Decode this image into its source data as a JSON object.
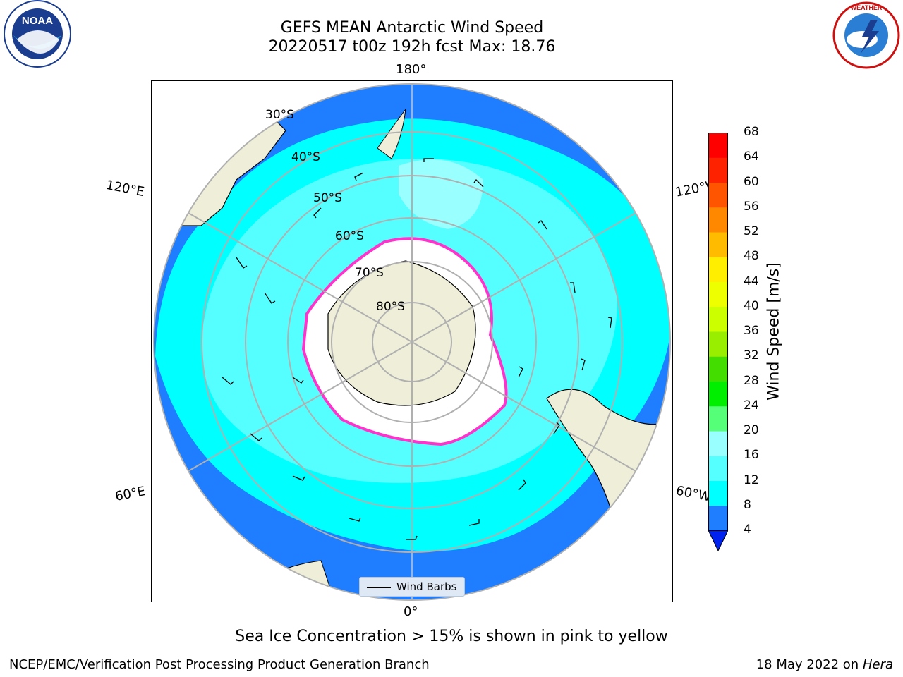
{
  "header": {
    "title": "GEFS MEAN Antarctic Wind Speed",
    "subtitle": "20220517 t00z 192h fcst   Max: 18.76"
  },
  "logos": {
    "left": "NOAA",
    "right": "NATIONAL WEATHER SERVICE"
  },
  "map": {
    "longitude_labels": {
      "top": "180°",
      "bottom": "0°",
      "upper_left": "120°E",
      "upper_right": "120°W",
      "lower_left": "60°E",
      "lower_right": "60°W"
    },
    "latitude_labels": [
      "30°S",
      "40°S",
      "50°S",
      "60°S",
      "70°S",
      "80°S"
    ],
    "legend": {
      "label": "Wind Barbs"
    },
    "colors": {
      "ocean_deep": "#1e7eff",
      "ocean_8_12": "#00ffff",
      "ocean_12_16": "#55ffff",
      "ocean_16_20": "#99ffff",
      "land": "#efeed9",
      "sea_ice_edge": "#ff33cc",
      "ice_interior": "#ffffff"
    }
  },
  "colorbar": {
    "label": "Wind Speed [m/s]",
    "ticks": [
      "4",
      "8",
      "12",
      "16",
      "20",
      "24",
      "28",
      "32",
      "36",
      "40",
      "44",
      "48",
      "52",
      "56",
      "60",
      "64",
      "68"
    ],
    "colors": [
      "#0022ee",
      "#1e7eff",
      "#00ffff",
      "#55ffff",
      "#99ffff",
      "#55ff77",
      "#00ee00",
      "#44dd00",
      "#99ee00",
      "#ccff00",
      "#eeff00",
      "#ffee00",
      "#ffbb00",
      "#ff8800",
      "#ff5500",
      "#ff2200",
      "#ff0000"
    ]
  },
  "caption": "Sea Ice Concentration > 15% is shown in pink to yellow",
  "footer": {
    "left": "NCEP/EMC/Verification Post Processing Product Generation Branch",
    "right_date": "18 May 2022 on",
    "right_machine": "Hera"
  }
}
